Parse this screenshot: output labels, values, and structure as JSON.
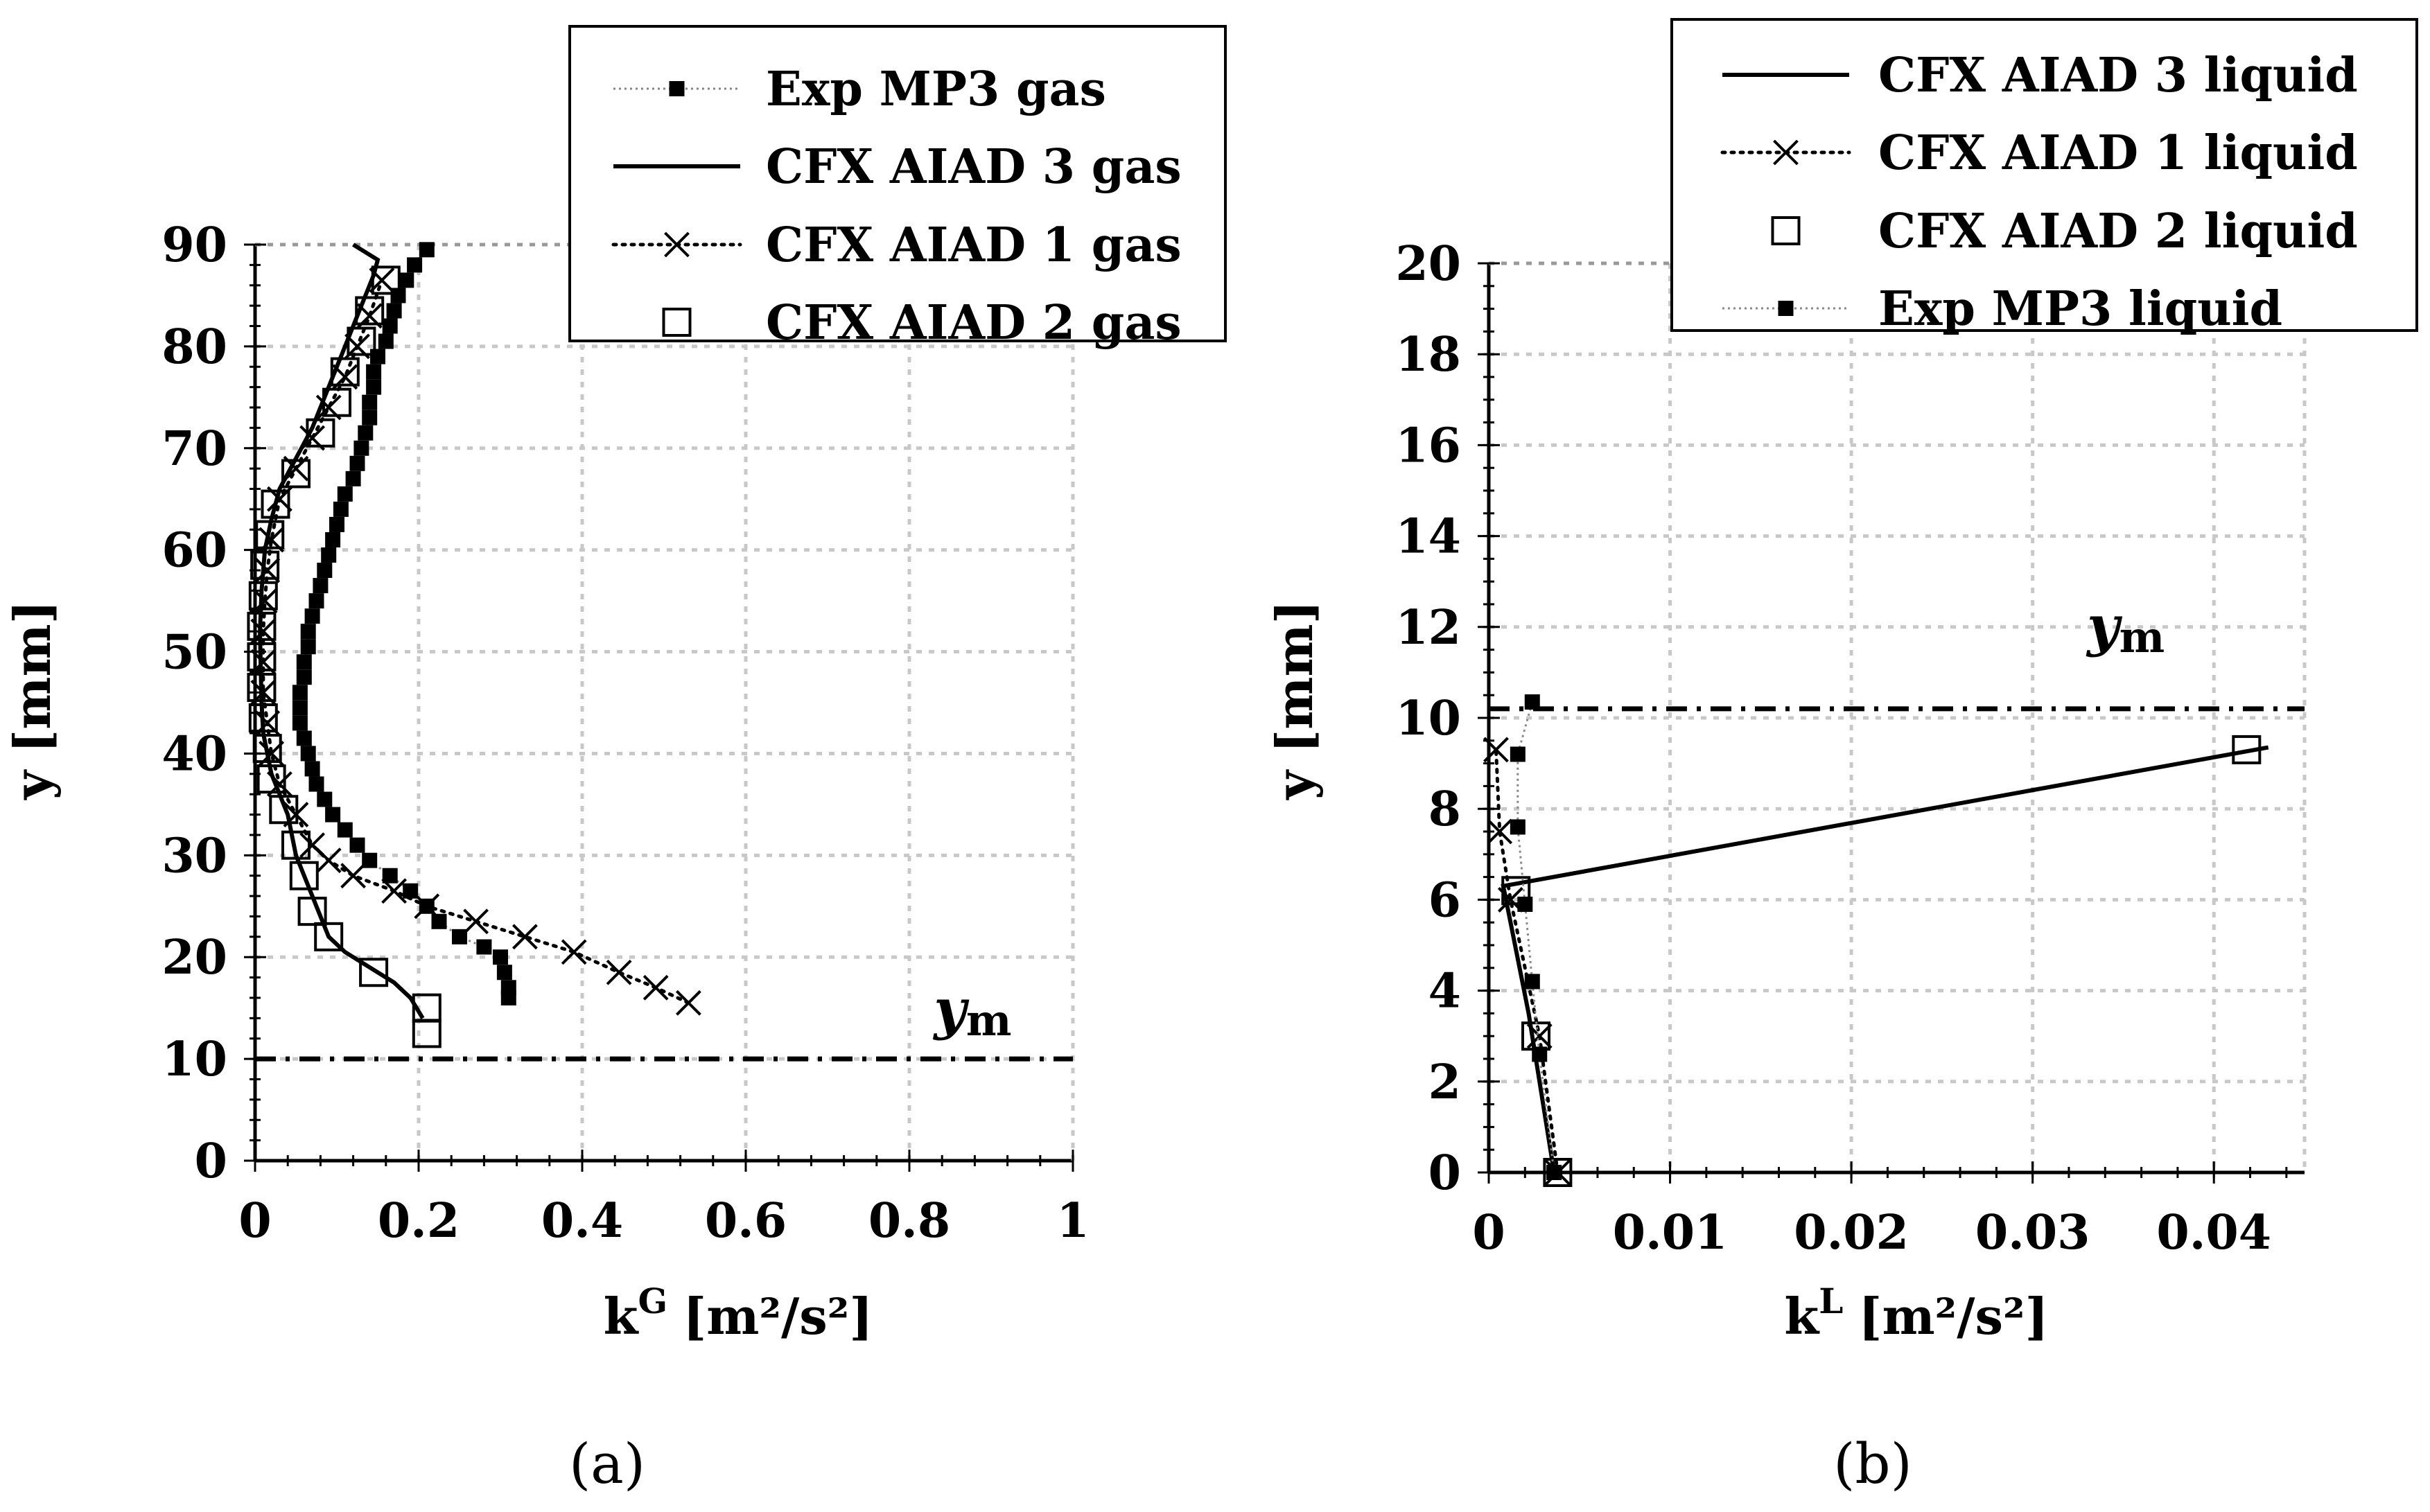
{
  "chart_data": [
    {
      "type": "line",
      "caption": "(a)",
      "xlabel_main": "k",
      "xlabel_sup": "G",
      "xlabel_unit": "[m²/s²]",
      "ylabel": "y [mm]",
      "xlim": [
        0,
        1
      ],
      "ylim": [
        0,
        90
      ],
      "xticks": [
        0,
        0.2,
        0.4,
        0.6,
        0.8,
        1
      ],
      "xtick_labels": [
        "0",
        "0.2",
        "0.4",
        "0.6",
        "0.8",
        "1"
      ],
      "yticks": [
        0,
        10,
        20,
        30,
        40,
        50,
        60,
        70,
        80,
        90
      ],
      "ytick_labels": [
        "0",
        "10",
        "20",
        "30",
        "40",
        "50",
        "60",
        "70",
        "80",
        "90"
      ],
      "grid": true,
      "legend_position": "top-right",
      "annotation": {
        "text": "y",
        "sub": "m",
        "x": 0.83,
        "y": 13
      },
      "reference_line": {
        "y": 10,
        "style": "dash-dot"
      },
      "series": [
        {
          "name": "Exp MP3 gas",
          "line": "dotted-thin",
          "marker": "filled-square",
          "points": [
            [
              0.21,
              89.5
            ],
            [
              0.195,
              88
            ],
            [
              0.185,
              86.5
            ],
            [
              0.175,
              85
            ],
            [
              0.17,
              83.5
            ],
            [
              0.165,
              82
            ],
            [
              0.16,
              80.5
            ],
            [
              0.15,
              79
            ],
            [
              0.145,
              77.5
            ],
            [
              0.145,
              76
            ],
            [
              0.14,
              74.5
            ],
            [
              0.14,
              73
            ],
            [
              0.135,
              71.5
            ],
            [
              0.13,
              70
            ],
            [
              0.125,
              68.5
            ],
            [
              0.12,
              67
            ],
            [
              0.11,
              65.5
            ],
            [
              0.105,
              64
            ],
            [
              0.1,
              62.5
            ],
            [
              0.095,
              61
            ],
            [
              0.09,
              59.5
            ],
            [
              0.085,
              58
            ],
            [
              0.08,
              56.5
            ],
            [
              0.075,
              55
            ],
            [
              0.07,
              53.5
            ],
            [
              0.065,
              52
            ],
            [
              0.065,
              50.5
            ],
            [
              0.06,
              49
            ],
            [
              0.06,
              47.5
            ],
            [
              0.055,
              46
            ],
            [
              0.055,
              44.5
            ],
            [
              0.055,
              43
            ],
            [
              0.06,
              41.5
            ],
            [
              0.065,
              40
            ],
            [
              0.07,
              38.5
            ],
            [
              0.075,
              37
            ],
            [
              0.085,
              35.5
            ],
            [
              0.095,
              34
            ],
            [
              0.11,
              32.5
            ],
            [
              0.125,
              31
            ],
            [
              0.14,
              29.5
            ],
            [
              0.165,
              28
            ],
            [
              0.19,
              26.5
            ],
            [
              0.21,
              25
            ],
            [
              0.225,
              23.5
            ],
            [
              0.25,
              22
            ],
            [
              0.28,
              21
            ],
            [
              0.3,
              20
            ],
            [
              0.305,
              18.5
            ],
            [
              0.31,
              17
            ],
            [
              0.31,
              16
            ]
          ]
        },
        {
          "name": "CFX AIAD 3 gas",
          "line": "solid",
          "marker": "none",
          "points": [
            [
              0.205,
              14
            ],
            [
              0.19,
              16
            ],
            [
              0.17,
              17.5
            ],
            [
              0.14,
              19
            ],
            [
              0.11,
              20.5
            ],
            [
              0.09,
              22
            ],
            [
              0.08,
              24
            ],
            [
              0.07,
              26
            ],
            [
              0.06,
              28
            ],
            [
              0.05,
              30
            ],
            [
              0.045,
              32
            ],
            [
              0.04,
              34
            ],
            [
              0.03,
              36
            ],
            [
              0.02,
              38
            ],
            [
              0.015,
              40
            ],
            [
              0.01,
              42
            ],
            [
              0.008,
              45
            ],
            [
              0.007,
              48
            ],
            [
              0.006,
              52
            ],
            [
              0.008,
              56
            ],
            [
              0.012,
              60
            ],
            [
              0.02,
              63
            ],
            [
              0.03,
              66
            ],
            [
              0.05,
              69
            ],
            [
              0.07,
              72
            ],
            [
              0.085,
              75
            ],
            [
              0.1,
              78
            ],
            [
              0.115,
              81
            ],
            [
              0.13,
              84
            ],
            [
              0.145,
              87
            ],
            [
              0.15,
              88.5
            ],
            [
              0.12,
              90
            ]
          ]
        },
        {
          "name": "CFX AIAD 1 gas",
          "line": "dotted",
          "marker": "x",
          "points": [
            [
              0.53,
              15.5
            ],
            [
              0.49,
              17
            ],
            [
              0.445,
              18.5
            ],
            [
              0.39,
              20.5
            ],
            [
              0.33,
              22
            ],
            [
              0.27,
              23.5
            ],
            [
              0.21,
              25
            ],
            [
              0.17,
              26.5
            ],
            [
              0.12,
              28
            ],
            [
              0.09,
              29.5
            ],
            [
              0.07,
              31
            ],
            [
              0.05,
              34
            ],
            [
              0.03,
              37
            ],
            [
              0.02,
              40
            ],
            [
              0.015,
              43
            ],
            [
              0.01,
              46
            ],
            [
              0.01,
              49
            ],
            [
              0.01,
              52
            ],
            [
              0.012,
              55
            ],
            [
              0.015,
              58
            ],
            [
              0.02,
              61
            ],
            [
              0.03,
              65
            ],
            [
              0.05,
              68
            ],
            [
              0.07,
              71
            ],
            [
              0.09,
              74
            ],
            [
              0.11,
              77
            ],
            [
              0.125,
              80
            ],
            [
              0.14,
              83
            ],
            [
              0.155,
              86.5
            ]
          ]
        },
        {
          "name": "CFX AIAD 2 gas",
          "line": "none",
          "marker": "open-square",
          "points": [
            [
              0.21,
              12.5
            ],
            [
              0.21,
              15
            ],
            [
              0.145,
              18.5
            ],
            [
              0.09,
              22
            ],
            [
              0.07,
              24.5
            ],
            [
              0.06,
              28
            ],
            [
              0.05,
              31
            ],
            [
              0.035,
              34.5
            ],
            [
              0.02,
              37.5
            ],
            [
              0.015,
              40.5
            ],
            [
              0.01,
              43.5
            ],
            [
              0.008,
              46.5
            ],
            [
              0.008,
              49.5
            ],
            [
              0.008,
              52.5
            ],
            [
              0.01,
              55.5
            ],
            [
              0.012,
              58.5
            ],
            [
              0.018,
              61.5
            ],
            [
              0.025,
              64.5
            ],
            [
              0.05,
              67.5
            ],
            [
              0.08,
              71.5
            ],
            [
              0.1,
              74.5
            ],
            [
              0.11,
              77.5
            ],
            [
              0.13,
              80.5
            ],
            [
              0.14,
              83.5
            ],
            [
              0.16,
              86.5
            ]
          ]
        }
      ]
    },
    {
      "type": "line",
      "caption": "(b)",
      "xlabel_main": "k",
      "xlabel_sup": "L",
      "xlabel_unit": "[m²/s²]",
      "ylabel": "y [mm]",
      "xlim": [
        0,
        0.045
      ],
      "ylim": [
        0,
        20
      ],
      "xticks": [
        0,
        0.01,
        0.02,
        0.03,
        0.04
      ],
      "xtick_labels": [
        "0",
        "0.01",
        "0.02",
        "0.03",
        "0.04"
      ],
      "yticks": [
        0,
        2,
        4,
        6,
        8,
        10,
        12,
        14,
        16,
        18,
        20
      ],
      "ytick_labels": [
        "0",
        "2",
        "4",
        "6",
        "8",
        "10",
        "12",
        "14",
        "16",
        "18",
        "20"
      ],
      "grid": true,
      "legend_position": "top-right",
      "annotation": {
        "text": "y",
        "sub": "m",
        "x": 0.033,
        "y": 11.6
      },
      "reference_line": {
        "y": 10.2,
        "style": "dash-dot"
      },
      "series": [
        {
          "name": "CFX AIAD 3 liquid",
          "line": "solid",
          "marker": "none",
          "points": [
            [
              0.0036,
              0
            ],
            [
              0.0028,
              2
            ],
            [
              0.0022,
              3.5
            ],
            [
              0.0012,
              5.5
            ],
            [
              0.0008,
              6.3
            ],
            [
              0.043,
              9.35
            ]
          ]
        },
        {
          "name": "CFX AIAD 1 liquid",
          "line": "dotted",
          "marker": "x",
          "points": [
            [
              0.0038,
              0
            ],
            [
              0.0028,
              3.0
            ],
            [
              0.0012,
              6.0
            ],
            [
              0.0006,
              7.5
            ],
            [
              0.0004,
              9.3
            ]
          ]
        },
        {
          "name": "CFX AIAD 2 liquid",
          "line": "none",
          "marker": "open-square",
          "points": [
            [
              0.0038,
              0
            ],
            [
              0.0026,
              3.0
            ],
            [
              0.0015,
              6.2
            ],
            [
              0.0418,
              9.3
            ]
          ]
        },
        {
          "name": "Exp MP3 liquid",
          "line": "dotted-thin",
          "marker": "filled-square",
          "points": [
            [
              0.0036,
              0
            ],
            [
              0.0028,
              2.6
            ],
            [
              0.0024,
              4.2
            ],
            [
              0.002,
              5.9
            ],
            [
              0.0016,
              7.6
            ],
            [
              0.0016,
              9.2
            ],
            [
              0.0024,
              10.35
            ]
          ]
        }
      ]
    }
  ]
}
